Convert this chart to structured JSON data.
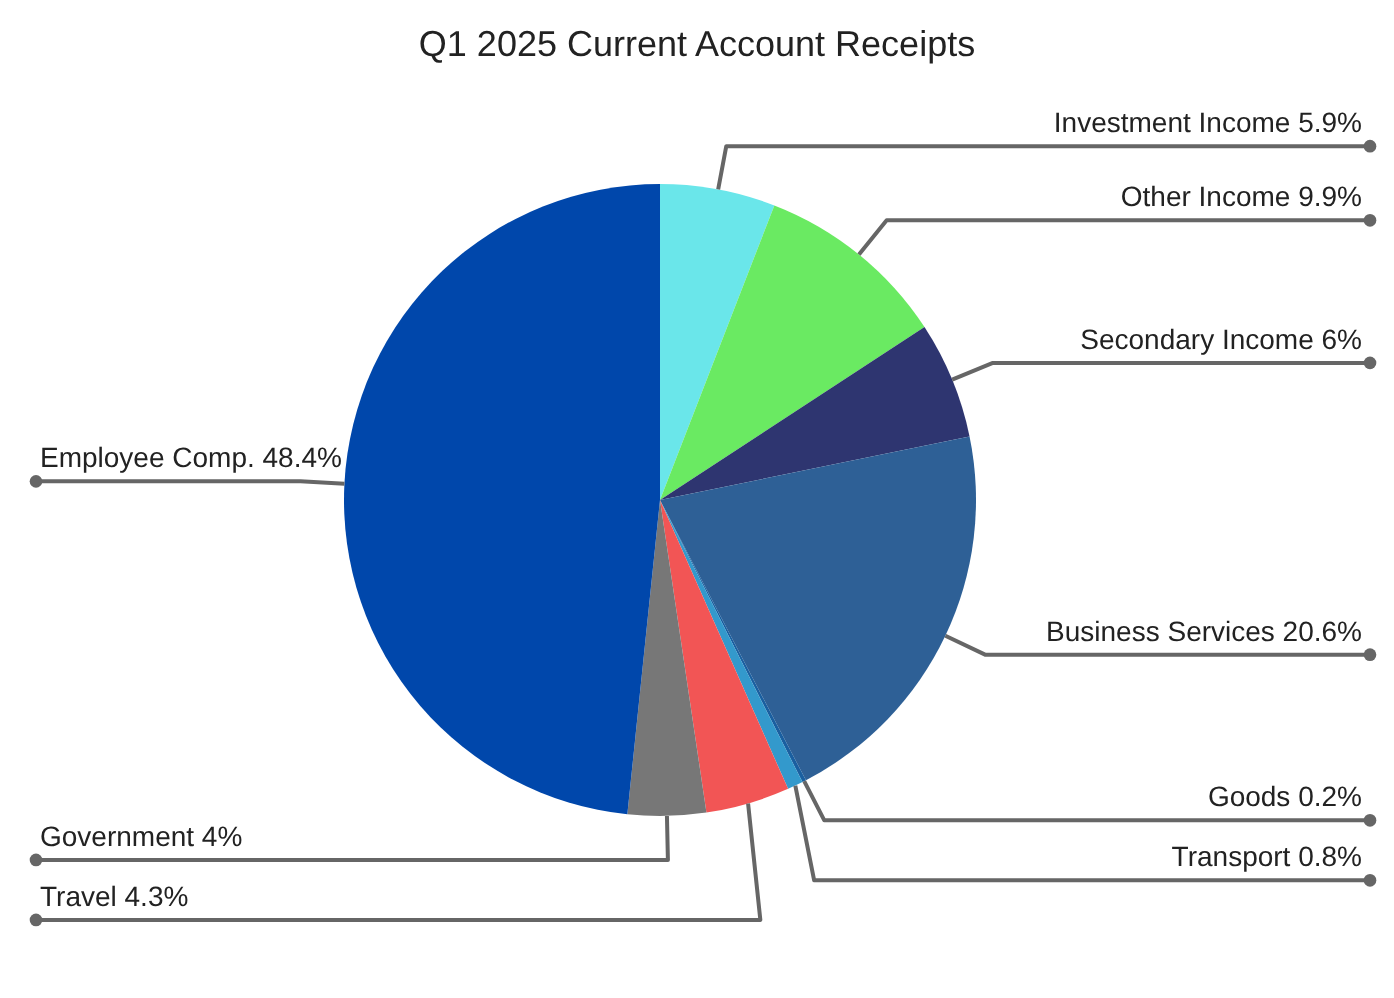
{
  "chart_data": {
    "type": "pie",
    "title": "Q1 2025 Current Account Receipts",
    "categories": [
      "Investment Income",
      "Other Income",
      "Secondary Income",
      "Business Services",
      "Goods",
      "Transport",
      "Travel",
      "Government",
      "Employee Comp."
    ],
    "values": [
      5.9,
      9.9,
      6,
      20.6,
      0.2,
      0.8,
      4.3,
      4,
      48.4
    ],
    "value_labels": [
      "5.9%",
      "9.9%",
      "6%",
      "20.6%",
      "0.2%",
      "0.8%",
      "4.3%",
      "4%",
      "48.4%"
    ],
    "colors": [
      "#6ae6ea",
      "#6aea62",
      "#2e3570",
      "#2e6096",
      "#1a5fa0",
      "#3399cc",
      "#f25555",
      "#777777",
      "#0047ab"
    ],
    "legend": false
  }
}
